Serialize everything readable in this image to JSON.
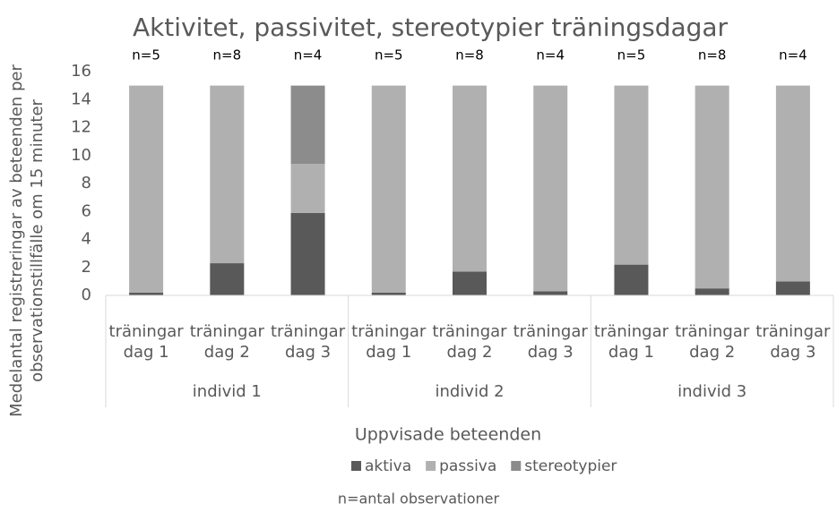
{
  "chart_data": {
    "type": "stacked_bar",
    "title": "Aktivitet, passivitet, stereotypier träningsdagar",
    "ylabel": "Medelantal registreringar av beteenden per observationstillfälle om 15 minuter",
    "xlabel": "Uppvisade beteenden",
    "categories": [
      "träningar dag 1",
      "träningar dag 2",
      "träningar dag 3",
      "träningar dag 1",
      "träningar dag 2",
      "träningar dag 3",
      "träningar dag 1",
      "träningar dag 2",
      "träningar dag 3"
    ],
    "groups": [
      "individ 1",
      "individ 2",
      "individ 3"
    ],
    "bar_labels": [
      "n=5",
      "n=8",
      "n=4",
      "n=5",
      "n=8",
      "n=4",
      "n=5",
      "n=8",
      "n=4"
    ],
    "series": [
      {
        "name": "aktiva",
        "color": "#595959",
        "values": [
          0.2,
          2.3,
          5.9,
          0.2,
          1.7,
          0.3,
          2.2,
          0.5,
          1.0
        ]
      },
      {
        "name": "passiva",
        "color": "#b0b0b0",
        "values": [
          14.8,
          12.7,
          3.5,
          14.8,
          13.3,
          14.7,
          12.8,
          14.5,
          14.0
        ]
      },
      {
        "name": "stereotypier",
        "color": "#8c8c8c",
        "values": [
          0,
          0,
          5.6,
          0,
          0,
          0,
          0,
          0,
          0
        ]
      }
    ],
    "ylim": [
      0,
      16
    ],
    "yticks": [
      0,
      2,
      4,
      6,
      8,
      10,
      12,
      14,
      16
    ],
    "grid": false,
    "legend": "bottom",
    "footnote": "n=antal observationer"
  }
}
